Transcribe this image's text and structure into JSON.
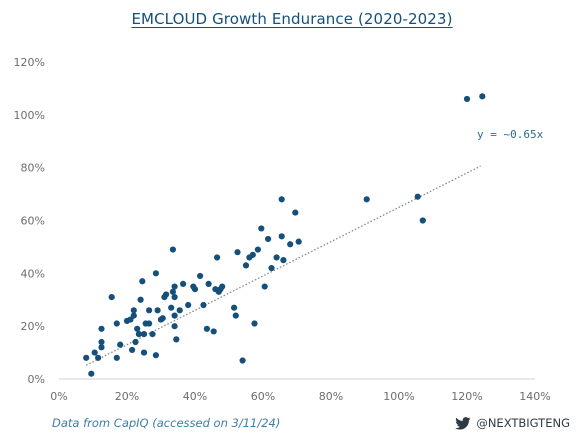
{
  "title": "EMCLOUD Growth Endurance (2020-2023)",
  "source": "Data from CapIQ (accessed on 3/11/24)",
  "handle": "@NEXTBIGTENG",
  "icons": {
    "twitter": "twitter-bird-icon"
  },
  "colors": {
    "points": "#14507a",
    "trend": "#888888",
    "title": "#14507a"
  },
  "chart_data": {
    "type": "scatter",
    "title": "EMCLOUD Growth Endurance (2020-2023)",
    "xlabel": "",
    "ylabel": "",
    "xlim": [
      0,
      140
    ],
    "ylim": [
      0,
      120
    ],
    "x_ticks": [
      "0%",
      "20%",
      "40%",
      "60%",
      "80%",
      "100%",
      "120%",
      "140%"
    ],
    "y_ticks": [
      "0%",
      "20%",
      "40%",
      "60%",
      "80%",
      "100%",
      "120%"
    ],
    "grid": false,
    "trendline": {
      "label": "y = ~0.65x",
      "slope": 0.65,
      "x_range": [
        8,
        124
      ]
    },
    "points": [
      [
        8,
        8
      ],
      [
        9.5,
        2
      ],
      [
        10.5,
        10
      ],
      [
        11.5,
        8
      ],
      [
        12.5,
        19
      ],
      [
        12.5,
        14
      ],
      [
        12.5,
        12
      ],
      [
        15.5,
        31
      ],
      [
        17,
        8
      ],
      [
        17,
        21
      ],
      [
        18,
        13
      ],
      [
        20,
        22
      ],
      [
        21,
        22.5
      ],
      [
        21.5,
        11
      ],
      [
        22,
        26
      ],
      [
        22,
        24
      ],
      [
        22.5,
        14
      ],
      [
        23,
        19
      ],
      [
        23.5,
        17
      ],
      [
        24.5,
        37
      ],
      [
        24,
        30
      ],
      [
        25,
        10
      ],
      [
        25,
        17
      ],
      [
        25.5,
        21
      ],
      [
        26.5,
        21
      ],
      [
        26.5,
        26
      ],
      [
        27.5,
        17
      ],
      [
        28.5,
        40
      ],
      [
        28.5,
        9
      ],
      [
        29,
        26
      ],
      [
        30,
        22.5
      ],
      [
        30.5,
        23
      ],
      [
        31,
        31
      ],
      [
        31.5,
        32
      ],
      [
        33,
        27
      ],
      [
        33.5,
        49
      ],
      [
        33.5,
        33
      ],
      [
        34,
        35
      ],
      [
        34,
        31
      ],
      [
        34.5,
        15
      ],
      [
        34,
        24
      ],
      [
        34,
        20
      ],
      [
        35.5,
        26
      ],
      [
        36.5,
        36
      ],
      [
        38,
        28
      ],
      [
        39.5,
        35
      ],
      [
        40,
        34
      ],
      [
        41.5,
        39
      ],
      [
        42.5,
        28
      ],
      [
        43.5,
        19
      ],
      [
        44,
        36
      ],
      [
        45.5,
        18
      ],
      [
        46,
        34
      ],
      [
        46.5,
        46
      ],
      [
        47,
        33
      ],
      [
        47.5,
        34
      ],
      [
        48,
        35
      ],
      [
        51.5,
        27
      ],
      [
        52,
        24
      ],
      [
        52.5,
        48
      ],
      [
        54,
        7
      ],
      [
        55,
        43
      ],
      [
        56,
        46
      ],
      [
        57,
        47
      ],
      [
        57.5,
        21
      ],
      [
        58.5,
        49
      ],
      [
        59.5,
        57
      ],
      [
        60.5,
        35
      ],
      [
        61.5,
        53
      ],
      [
        62.5,
        42
      ],
      [
        64,
        46
      ],
      [
        65.5,
        54
      ],
      [
        65.5,
        68
      ],
      [
        66,
        45
      ],
      [
        68,
        51
      ],
      [
        69.5,
        63
      ],
      [
        70.5,
        52
      ],
      [
        90.5,
        68
      ],
      [
        105.5,
        69
      ],
      [
        107,
        60
      ],
      [
        120,
        106
      ],
      [
        124.5,
        107
      ]
    ]
  }
}
